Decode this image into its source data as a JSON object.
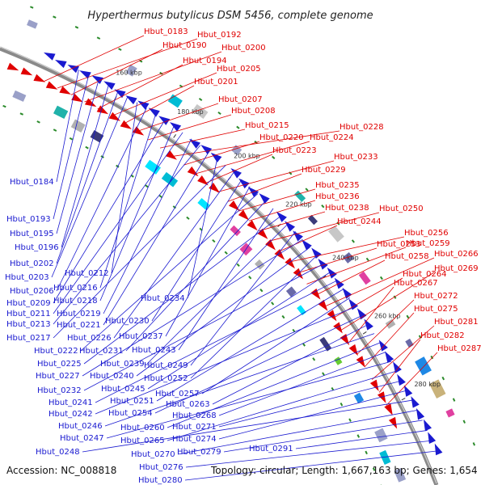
{
  "title": "Hyperthermus butylicus DSM 5456, complete genome",
  "footer": {
    "accession": "Accession: NC_008818",
    "topology": "Topology: circular; Length: 1,667,163 bp; Genes: 1,654"
  },
  "colors": {
    "forward": "#e00000",
    "reverse": "#1a1ad0",
    "backbone": "#8a8a8a",
    "tick": "#2a8a2a"
  },
  "ticks": [
    "160 kbp",
    "180 kbp",
    "200 kbp",
    "220 kbp",
    "240 kbp",
    "260 kbp",
    "280 kbp"
  ],
  "forward_labels": [
    "Hbut_0183",
    "Hbut_0192",
    "Hbut_0190",
    "Hbut_0200",
    "Hbut_0194",
    "Hbut_0205",
    "Hbut_0201",
    "Hbut_0207",
    "Hbut_0208",
    "Hbut_0215",
    "Hbut_0228",
    "Hbut_0220",
    "Hbut_0224",
    "Hbut_0223",
    "Hbut_0233",
    "Hbut_0229",
    "Hbut_0235",
    "Hbut_0236",
    "Hbut_0238",
    "Hbut_0250",
    "Hbut_0244",
    "Hbut_0256",
    "Hbut_0253",
    "Hbut_0259",
    "Hbut_0258",
    "Hbut_0266",
    "Hbut_0264",
    "Hbut_0269",
    "Hbut_0267",
    "Hbut_0272",
    "Hbut_0275",
    "Hbut_0281",
    "Hbut_0282",
    "Hbut_0287"
  ],
  "reverse_labels": [
    "Hbut_0184",
    "Hbut_0193",
    "Hbut_0195",
    "Hbut_0196",
    "Hbut_0202",
    "Hbut_0203",
    "Hbut_0212",
    "Hbut_0206",
    "Hbut_0216",
    "Hbut_0209",
    "Hbut_0218",
    "Hbut_0211",
    "Hbut_0219",
    "Hbut_0213",
    "Hbut_0221",
    "Hbut_0234",
    "Hbut_0217",
    "Hbut_0226",
    "Hbut_0230",
    "Hbut_0237",
    "Hbut_0222",
    "Hbut_0231",
    "Hbut_0243",
    "Hbut_0225",
    "Hbut_0239",
    "Hbut_0249",
    "Hbut_0227",
    "Hbut_0240",
    "Hbut_0252",
    "Hbut_0232",
    "Hbut_0245",
    "Hbut_0241",
    "Hbut_0251",
    "Hbut_0257",
    "Hbut_0242",
    "Hbut_0254",
    "Hbut_0263",
    "Hbut_0246",
    "Hbut_0260",
    "Hbut_0268",
    "Hbut_0247",
    "Hbut_0265",
    "Hbut_0271",
    "Hbut_0274",
    "Hbut_0248",
    "Hbut_0270",
    "Hbut_0279",
    "Hbut_0291",
    "Hbut_0276",
    "Hbut_0280"
  ]
}
